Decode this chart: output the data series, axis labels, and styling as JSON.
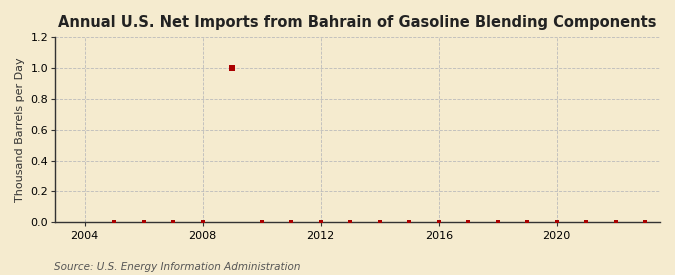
{
  "title": "Annual U.S. Net Imports from Bahrain of Gasoline Blending Components",
  "ylabel": "Thousand Barrels per Day",
  "source": "Source: U.S. Energy Information Administration",
  "background_color": "#F5EBCF",
  "plot_bg_color": "#F5EBCF",
  "title_fontsize": 10.5,
  "ylabel_fontsize": 8,
  "source_fontsize": 7.5,
  "xlim": [
    2003.0,
    2023.5
  ],
  "ylim": [
    0.0,
    1.2
  ],
  "yticks": [
    0.0,
    0.2,
    0.4,
    0.6,
    0.8,
    1.0,
    1.2
  ],
  "xticks": [
    2004,
    2008,
    2012,
    2016,
    2020
  ],
  "grid_color": "#BBBBBB",
  "point_color": "#AA0000",
  "spine_color": "#333333",
  "tick_color": "#333333",
  "data_x": [
    2005,
    2006,
    2007,
    2008,
    2009,
    2010,
    2011,
    2012,
    2013,
    2014,
    2015,
    2016,
    2017,
    2018,
    2019,
    2020,
    2021,
    2022,
    2023
  ],
  "data_y": [
    0.0,
    0.003,
    0.003,
    0.003,
    1.0,
    0.003,
    0.003,
    0.003,
    0.003,
    0.003,
    0.003,
    0.003,
    0.003,
    0.003,
    0.003,
    0.003,
    0.003,
    0.003,
    0.003
  ],
  "marker_size_main": 4,
  "marker_size_small": 2.5
}
